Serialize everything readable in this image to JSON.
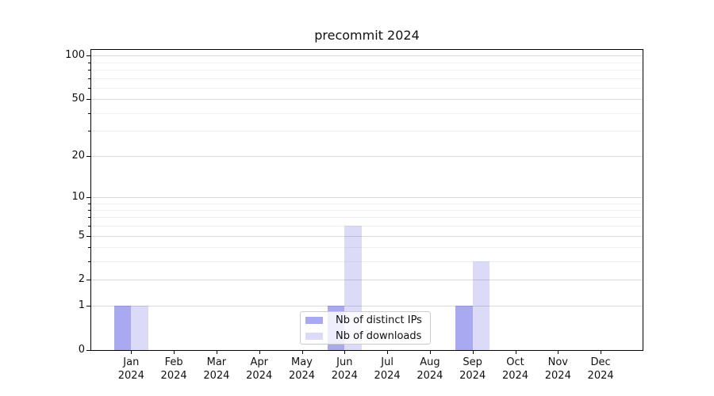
{
  "chart_data": {
    "type": "bar",
    "title": "precommit 2024",
    "categories": [
      "Jan",
      "Feb",
      "Mar",
      "Apr",
      "May",
      "Jun",
      "Jul",
      "Aug",
      "Sep",
      "Oct",
      "Nov",
      "Dec"
    ],
    "category_year": "2024",
    "series": [
      {
        "name": "Nb of distinct IPs",
        "color": "#4040e0",
        "alpha": 0.45,
        "values": [
          1,
          0,
          0,
          0,
          0,
          1,
          0,
          0,
          1,
          0,
          0,
          0
        ]
      },
      {
        "name": "Nb of downloads",
        "color": "#6f6fe3",
        "alpha": 0.25,
        "values": [
          1,
          0,
          0,
          0,
          0,
          6,
          0,
          0,
          3,
          0,
          0,
          0
        ]
      }
    ],
    "y_axis": {
      "scale": "log1p",
      "major_ticks": [
        0,
        1,
        2,
        5,
        10,
        20,
        50,
        100
      ],
      "minor_ticks": [
        3,
        4,
        6,
        7,
        8,
        9,
        30,
        40,
        60,
        70,
        80,
        90
      ],
      "ylim": [
        0,
        110
      ]
    },
    "legend_position": "lower center",
    "grid": true
  },
  "colors": {
    "background": "#ffffff",
    "spine": "#000000",
    "grid_major": "#d9d9d9",
    "grid_minor": "#f0f0f0",
    "text": "#111111",
    "legend_border": "#cccccc"
  }
}
